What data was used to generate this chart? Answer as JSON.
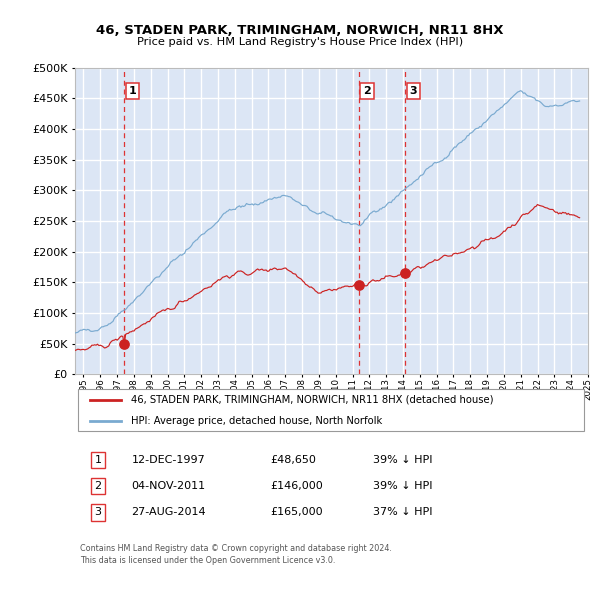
{
  "title1": "46, STADEN PARK, TRIMINGHAM, NORWICH, NR11 8HX",
  "title2": "Price paid vs. HM Land Registry's House Price Index (HPI)",
  "legend_red": "46, STADEN PARK, TRIMINGHAM, NORWICH, NR11 8HX (detached house)",
  "legend_blue": "HPI: Average price, detached house, North Norfolk",
  "sale1_date": "12-DEC-1997",
  "sale1_price": 48650,
  "sale1_hpi": "39% ↓ HPI",
  "sale2_date": "04-NOV-2011",
  "sale2_price": 146000,
  "sale2_hpi": "39% ↓ HPI",
  "sale3_date": "27-AUG-2014",
  "sale3_price": 165000,
  "sale3_hpi": "37% ↓ HPI",
  "footer1": "Contains HM Land Registry data © Crown copyright and database right 2024.",
  "footer2": "This data is licensed under the Open Government Licence v3.0.",
  "plot_bg": "#dce6f5",
  "fig_bg": "#ffffff",
  "red_color": "#cc2222",
  "blue_color": "#7aaad0",
  "grid_color": "#ffffff",
  "vline_color": "#dd3333",
  "ylim_max": 500000,
  "ylim_min": 0,
  "xmin": 1995.0,
  "xmax": 2025.5
}
